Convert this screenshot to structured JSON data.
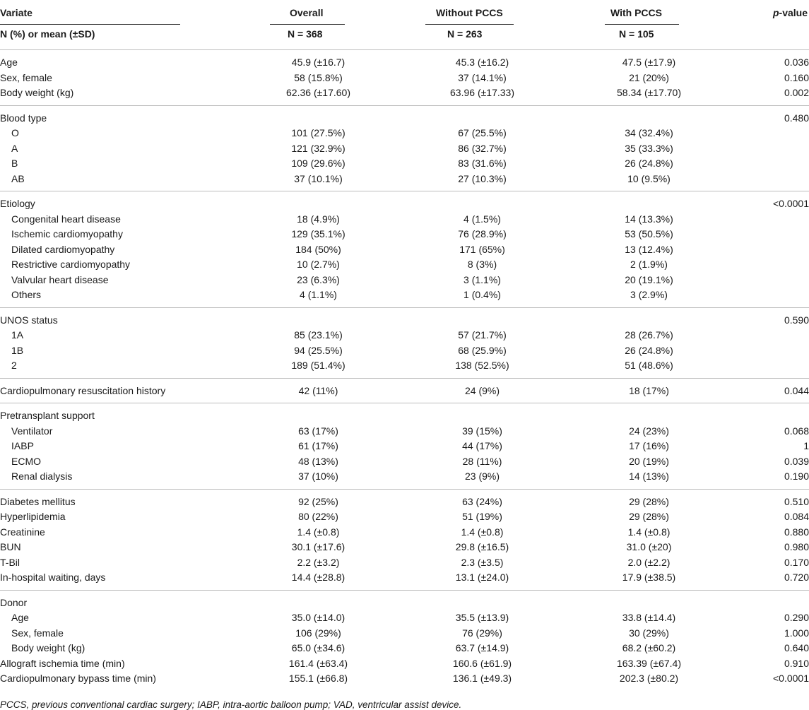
{
  "header": {
    "variate": "Variate",
    "overall": "Overall",
    "without": "Without PCCS",
    "with": "With PCCS",
    "p_italic": "p",
    "p_rest": "-value",
    "stat_label": "N (%) or mean (±SD)",
    "n_overall": "N = 368",
    "n_without": "N = 263",
    "n_with": "N = 105"
  },
  "groups": [
    {
      "rows": [
        {
          "label": "Age",
          "indent": false,
          "overall": "45.9 (±16.7)",
          "without": "45.3 (±16.2)",
          "with": "47.5 (±17.9)",
          "p": "0.036"
        },
        {
          "label": "Sex, female",
          "indent": false,
          "overall": "58 (15.8%)",
          "without": "37 (14.1%)",
          "with": "21 (20%)",
          "p": "0.160"
        },
        {
          "label": "Body weight (kg)",
          "indent": false,
          "overall": "62.36 (±17.60)",
          "without": "63.96 (±17.33)",
          "with": "58.34 (±17.70)",
          "p": "0.002"
        }
      ]
    },
    {
      "rows": [
        {
          "label": "Blood type",
          "indent": false,
          "overall": "",
          "without": "",
          "with": "",
          "p": "0.480"
        },
        {
          "label": "O",
          "indent": true,
          "overall": "101 (27.5%)",
          "without": "67 (25.5%)",
          "with": "34 (32.4%)",
          "p": ""
        },
        {
          "label": "A",
          "indent": true,
          "overall": "121 (32.9%)",
          "without": "86 (32.7%)",
          "with": "35 (33.3%)",
          "p": ""
        },
        {
          "label": "B",
          "indent": true,
          "overall": "109 (29.6%)",
          "without": "83 (31.6%)",
          "with": "26 (24.8%)",
          "p": ""
        },
        {
          "label": "AB",
          "indent": true,
          "overall": "37 (10.1%)",
          "without": "27 (10.3%)",
          "with": "10 (9.5%)",
          "p": ""
        }
      ]
    },
    {
      "rows": [
        {
          "label": "Etiology",
          "indent": false,
          "overall": "",
          "without": "",
          "with": "",
          "p": "<0.0001"
        },
        {
          "label": "Congenital heart disease",
          "indent": true,
          "overall": "18 (4.9%)",
          "without": "4 (1.5%)",
          "with": "14 (13.3%)",
          "p": ""
        },
        {
          "label": "Ischemic cardiomyopathy",
          "indent": true,
          "overall": "129 (35.1%)",
          "without": "76 (28.9%)",
          "with": "53 (50.5%)",
          "p": ""
        },
        {
          "label": "Dilated cardiomyopathy",
          "indent": true,
          "overall": "184 (50%)",
          "without": "171 (65%)",
          "with": "13 (12.4%)",
          "p": ""
        },
        {
          "label": "Restrictive cardiomyopathy",
          "indent": true,
          "overall": "10 (2.7%)",
          "without": "8 (3%)",
          "with": "2 (1.9%)",
          "p": ""
        },
        {
          "label": "Valvular heart disease",
          "indent": true,
          "overall": "23 (6.3%)",
          "without": "3 (1.1%)",
          "with": "20 (19.1%)",
          "p": ""
        },
        {
          "label": "Others",
          "indent": true,
          "overall": "4 (1.1%)",
          "without": "1 (0.4%)",
          "with": "3 (2.9%)",
          "p": ""
        }
      ]
    },
    {
      "rows": [
        {
          "label": "UNOS status",
          "indent": false,
          "overall": "",
          "without": "",
          "with": "",
          "p": "0.590"
        },
        {
          "label": "1A",
          "indent": true,
          "overall": "85 (23.1%)",
          "without": "57 (21.7%)",
          "with": "28 (26.7%)",
          "p": ""
        },
        {
          "label": "1B",
          "indent": true,
          "overall": "94 (25.5%)",
          "without": "68 (25.9%)",
          "with": "26 (24.8%)",
          "p": ""
        },
        {
          "label": "2",
          "indent": true,
          "overall": "189 (51.4%)",
          "without": "138 (52.5%)",
          "with": "51 (48.6%)",
          "p": ""
        }
      ]
    },
    {
      "rows": [
        {
          "label": "Cardiopulmonary resuscitation history",
          "indent": false,
          "overall": "42 (11%)",
          "without": "24 (9%)",
          "with": "18 (17%)",
          "p": "0.044"
        }
      ]
    },
    {
      "rows": [
        {
          "label": "Pretransplant support",
          "indent": false,
          "overall": "",
          "without": "",
          "with": "",
          "p": ""
        },
        {
          "label": "Ventilator",
          "indent": true,
          "overall": "63 (17%)",
          "without": "39 (15%)",
          "with": "24 (23%)",
          "p": "0.068"
        },
        {
          "label": "IABP",
          "indent": true,
          "overall": "61 (17%)",
          "without": "44 (17%)",
          "with": "17 (16%)",
          "p": "1"
        },
        {
          "label": "ECMO",
          "indent": true,
          "overall": "48 (13%)",
          "without": "28 (11%)",
          "with": "20 (19%)",
          "p": "0.039"
        },
        {
          "label": "Renal dialysis",
          "indent": true,
          "overall": "37 (10%)",
          "without": "23 (9%)",
          "with": "14 (13%)",
          "p": "0.190"
        }
      ]
    },
    {
      "rows": [
        {
          "label": "Diabetes mellitus",
          "indent": false,
          "overall": "92 (25%)",
          "without": "63 (24%)",
          "with": "29 (28%)",
          "p": "0.510"
        },
        {
          "label": "Hyperlipidemia",
          "indent": false,
          "overall": "80 (22%)",
          "without": "51 (19%)",
          "with": "29 (28%)",
          "p": "0.084"
        },
        {
          "label": "Creatinine",
          "indent": false,
          "overall": "1.4 (±0.8)",
          "without": "1.4 (±0.8)",
          "with": "1.4 (±0.8)",
          "p": "0.880"
        },
        {
          "label": "BUN",
          "indent": false,
          "overall": "30.1 (±17.6)",
          "without": "29.8 (±16.5)",
          "with": "31.0 (±20)",
          "p": "0.980"
        },
        {
          "label": "T-Bil",
          "indent": false,
          "overall": "2.2 (±3.2)",
          "without": "2.3 (±3.5)",
          "with": "2.0 (±2.2)",
          "p": "0.170"
        },
        {
          "label": "In-hospital waiting, days",
          "indent": false,
          "overall": "14.4 (±28.8)",
          "without": "13.1 (±24.0)",
          "with": "17.9 (±38.5)",
          "p": "0.720"
        }
      ]
    },
    {
      "rows": [
        {
          "label": "Donor",
          "indent": false,
          "overall": "",
          "without": "",
          "with": "",
          "p": ""
        },
        {
          "label": "Age",
          "indent": true,
          "overall": "35.0 (±14.0)",
          "without": "35.5 (±13.9)",
          "with": "33.8 (±14.4)",
          "p": "0.290"
        },
        {
          "label": "Sex, female",
          "indent": true,
          "overall": "106 (29%)",
          "without": "76 (29%)",
          "with": "30 (29%)",
          "p": "1.000"
        },
        {
          "label": "Body weight (kg)",
          "indent": true,
          "overall": "65.0 (±34.6)",
          "without": "63.7 (±14.9)",
          "with": "68.2 (±60.2)",
          "p": "0.640"
        },
        {
          "label": "Allograft ischemia time (min)",
          "indent": false,
          "overall": "161.4 (±63.4)",
          "without": "160.6 (±61.9)",
          "with": "163.39 (±67.4)",
          "p": "0.910"
        },
        {
          "label": "Cardiopulmonary bypass time (min)",
          "indent": false,
          "overall": "155.1 (±66.8)",
          "without": "136.1 (±49.3)",
          "with": "202.3 (±80.2)",
          "p": "<0.0001"
        }
      ]
    }
  ],
  "footnote": "PCCS, previous conventional cardiac surgery; IABP, intra-aortic balloon pump; VAD, ventricular assist device."
}
